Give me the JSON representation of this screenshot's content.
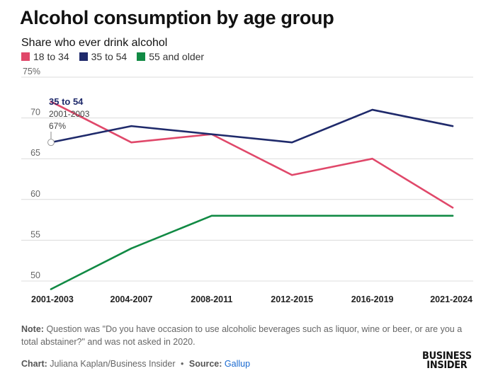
{
  "title": "Alcohol consumption by age group",
  "subtitle": "Share who ever drink alcohol",
  "legend": [
    {
      "label": "18 to 34",
      "color": "#e0486a"
    },
    {
      "label": "35 to 54",
      "color": "#1f2a6b"
    },
    {
      "label": "55 and older",
      "color": "#118a44"
    }
  ],
  "annotation": {
    "series": "35 to 54",
    "period": "2001-2003",
    "value": "67%"
  },
  "note": {
    "label": "Note:",
    "text": "Question was \"Do you have occasion to use alcoholic beverages such as liquor, wine or beer, or are you a total abstainer?\" and was not asked in 2020."
  },
  "credit": {
    "chart_label": "Chart:",
    "chart_text": "Juliana Kaplan/Business Insider",
    "separator": "•",
    "source_label": "Source:",
    "source_text": "Gallup"
  },
  "logo": {
    "line1": "BUSINESS",
    "line2": "INSIDER"
  },
  "chart_data": {
    "type": "line",
    "categories": [
      "2001-2003",
      "2004-2007",
      "2008-2011",
      "2012-2015",
      "2016-2019",
      "2021-2024"
    ],
    "yticks": [
      "75%",
      "70",
      "65",
      "60",
      "55",
      "50"
    ],
    "ylim": [
      50,
      75
    ],
    "grid": true,
    "legend_position": "top-left",
    "series": [
      {
        "name": "18 to 34",
        "color": "#e0486a",
        "values": [
          72,
          67,
          68,
          63,
          65,
          59
        ]
      },
      {
        "name": "35 to 54",
        "color": "#1f2a6b",
        "values": [
          67,
          69,
          68,
          67,
          71,
          69
        ]
      },
      {
        "name": "55 and older",
        "color": "#118a44",
        "values": [
          49,
          54,
          58,
          58,
          58,
          58
        ]
      }
    ]
  }
}
